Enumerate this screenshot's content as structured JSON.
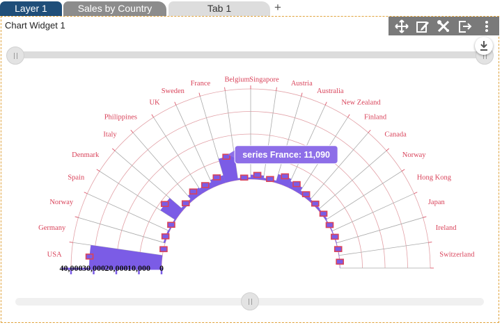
{
  "tabs": [
    {
      "label": "Layer 1"
    },
    {
      "label": "Sales by Country"
    },
    {
      "label": "Tab 1"
    }
  ],
  "add_tab_label": "+",
  "widget": {
    "title": "Chart Widget 1"
  },
  "toolbar": {
    "icons": [
      "move-icon",
      "edit-icon",
      "tools-icon",
      "export-icon",
      "more-icon"
    ]
  },
  "tooltip": {
    "text": "series France: 11,090"
  },
  "colors": {
    "bar": "#7b5ce6",
    "marker": "#d9435a",
    "tooltip": "#8d6ee8",
    "label": "#d9435a"
  },
  "chart_data": {
    "type": "radial-bar",
    "categories": [
      "USA",
      "Germany",
      "Norway",
      "Spain",
      "Denmark",
      "Italy",
      "Philippines",
      "UK",
      "Sweden",
      "France",
      "Belgium",
      "Singapore",
      "Austria",
      "Australia",
      "New Zealand",
      "Finland",
      "Canada",
      "Norway",
      "Hong Kong",
      "Japan",
      "Ireland",
      "Switzerland"
    ],
    "series": [
      {
        "name": "series",
        "values": [
          32000,
          0,
          800,
          600,
          8000,
          1200,
          3000,
          2500,
          3500,
          11090,
          800,
          2000,
          1000,
          4000,
          3000,
          1500,
          1000,
          800,
          400,
          300,
          200,
          150
        ]
      }
    ],
    "radial_axis": {
      "min": 0,
      "max": 40000,
      "ticks": [
        "40,000",
        "30,000",
        "20,000",
        "10,000",
        "0"
      ]
    },
    "start_angle": 180,
    "end_angle": 0,
    "tooltip_category": "France"
  }
}
